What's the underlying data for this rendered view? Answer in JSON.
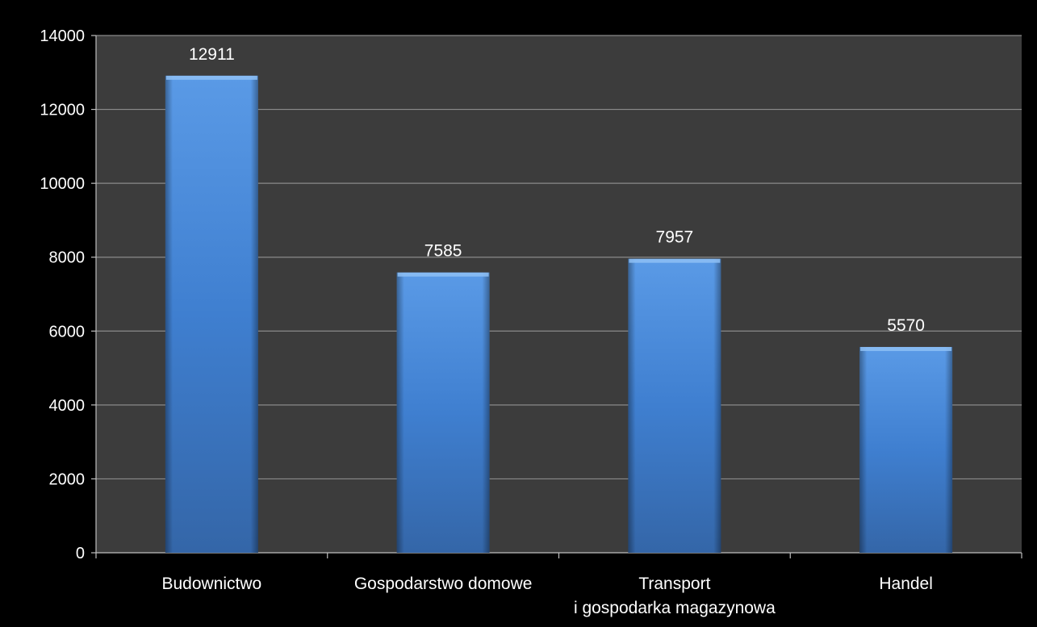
{
  "colors": {
    "page_background": "#000000",
    "plot_background": "#3c3c3c",
    "gridline": "#8a8a8a",
    "axis": "#bfbfbf",
    "bar_top": "#5a9ae6",
    "bar_mid": "#3f7fd0",
    "bar_bottom": "#3466a8",
    "text": "#ffffff"
  },
  "chart_data": {
    "type": "bar",
    "title": "",
    "xlabel": "",
    "ylabel": "",
    "categories": [
      [
        "Budownictwo"
      ],
      [
        "Gospodarstwo domowe"
      ],
      [
        "Transport",
        "i gospodarka magazynowa"
      ],
      [
        "Handel"
      ]
    ],
    "values": [
      12911,
      7585,
      7957,
      5570
    ],
    "data_labels": [
      "12911",
      "7585",
      "7957",
      "5570"
    ],
    "ylim": [
      0,
      14000
    ],
    "yticks": [
      0,
      2000,
      4000,
      6000,
      8000,
      10000,
      12000,
      14000
    ],
    "ytick_labels": [
      "0",
      "2000",
      "4000",
      "6000",
      "8000",
      "10000",
      "12000",
      "14000"
    ],
    "grid": true,
    "legend": "none"
  }
}
